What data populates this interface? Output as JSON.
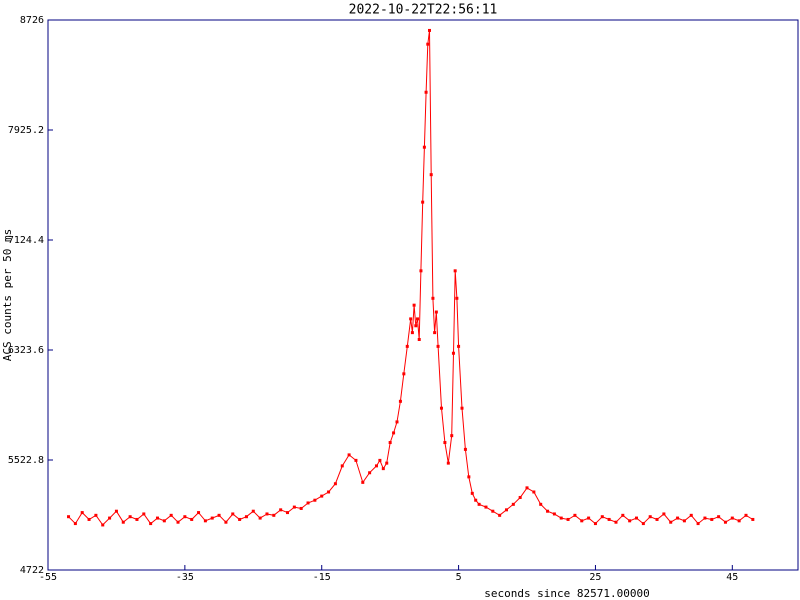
{
  "chart_data": {
    "type": "line",
    "title": "2022-10-22T22:56:11",
    "xlabel": "seconds since 82571.00000",
    "ylabel": "ACS counts per 50 ms",
    "color": "#ff0000",
    "frame_color": "#000080",
    "xlim": [
      -55,
      54.6
    ],
    "xticks": [
      -55,
      -35,
      -15,
      5,
      25,
      45
    ],
    "ylim": [
      4722,
      8726
    ],
    "yticks": [
      4722,
      5522.8,
      6323.6,
      7124.4,
      7925.2,
      8726
    ],
    "x": [
      -52,
      -51,
      -50,
      -49,
      -48,
      -47,
      -46,
      -45,
      -44,
      -43,
      -42,
      -41,
      -40,
      -39,
      -38,
      -37,
      -36,
      -35,
      -34,
      -33,
      -32,
      -31,
      -30,
      -29,
      -28,
      -27,
      -26,
      -25,
      -24,
      -23,
      -22,
      -21,
      -20,
      -19,
      -18,
      -17,
      -16,
      -15,
      -14,
      -13,
      -12,
      -11,
      -10,
      -9,
      -8,
      -7,
      -6.5,
      -6,
      -5.5,
      -5,
      -4.5,
      -4,
      -3.5,
      -3,
      -2.5,
      -2,
      -1.75,
      -1.5,
      -1.25,
      -1,
      -0.75,
      -0.5,
      -0.25,
      0,
      0.25,
      0.5,
      0.75,
      1,
      1.25,
      1.5,
      1.75,
      2,
      2.5,
      3,
      3.5,
      4,
      4.25,
      4.5,
      4.75,
      5,
      5.5,
      6,
      6.5,
      7,
      7.5,
      8,
      9,
      10,
      11,
      12,
      13,
      14,
      15,
      16,
      17,
      18,
      19,
      20,
      21,
      22,
      23,
      24,
      25,
      26,
      27,
      28,
      29,
      30,
      31,
      32,
      33,
      34,
      35,
      36,
      37,
      38,
      39,
      40,
      41,
      42,
      43,
      44,
      45,
      46,
      47,
      48
    ],
    "values": [
      5110,
      5060,
      5140,
      5090,
      5120,
      5050,
      5100,
      5150,
      5070,
      5110,
      5090,
      5130,
      5060,
      5100,
      5080,
      5120,
      5070,
      5110,
      5090,
      5140,
      5080,
      5100,
      5120,
      5070,
      5130,
      5090,
      5110,
      5150,
      5100,
      5130,
      5120,
      5160,
      5140,
      5180,
      5170,
      5210,
      5230,
      5260,
      5290,
      5350,
      5480,
      5560,
      5520,
      5360,
      5430,
      5480,
      5520,
      5460,
      5500,
      5650,
      5720,
      5800,
      5950,
      6150,
      6350,
      6550,
      6450,
      6650,
      6500,
      6550,
      6400,
      6900,
      7400,
      7800,
      8200,
      8550,
      8650,
      7600,
      6700,
      6450,
      6600,
      6350,
      5900,
      5650,
      5500,
      5700,
      6300,
      6900,
      6700,
      6350,
      5900,
      5600,
      5400,
      5280,
      5230,
      5200,
      5180,
      5150,
      5120,
      5160,
      5200,
      5250,
      5320,
      5290,
      5200,
      5150,
      5130,
      5100,
      5090,
      5120,
      5080,
      5100,
      5060,
      5110,
      5090,
      5070,
      5120,
      5080,
      5100,
      5060,
      5110,
      5090,
      5130,
      5070,
      5100,
      5080,
      5120,
      5060,
      5100,
      5090,
      5110,
      5070,
      5100,
      5080,
      5120,
      5090
    ]
  }
}
